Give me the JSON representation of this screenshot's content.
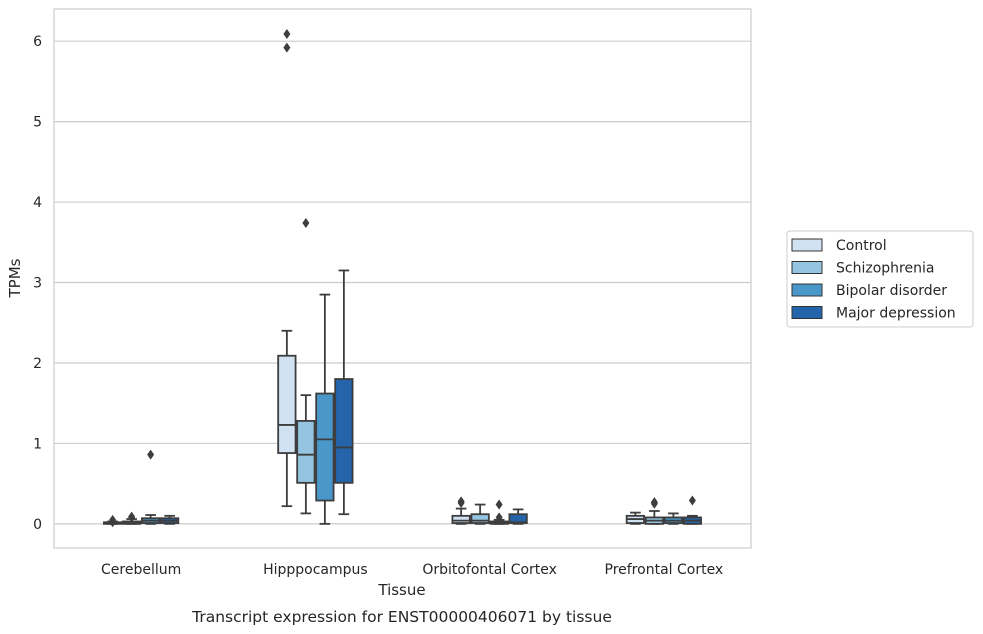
{
  "chart_data": {
    "type": "box",
    "title": "",
    "caption": "Transcript expression for ENST00000406071 by tissue",
    "xlabel": "Tissue",
    "ylabel": "TPMs",
    "ylim": [
      -0.3,
      6.4
    ],
    "yticks": [
      0,
      1,
      2,
      3,
      4,
      5,
      6
    ],
    "grid": "horizontal",
    "legend_position": "right",
    "categories": [
      "Cerebellum",
      "Hipppocampus",
      "Orbitofontal Cortex",
      "Prefrontal Cortex"
    ],
    "series": [
      {
        "name": "Control",
        "color": "#d0e1f2",
        "boxes": [
          {
            "whislo": 0.0,
            "q1": 0.0,
            "med": 0.01,
            "q3": 0.02,
            "whishi": 0.03,
            "fliers": [
              0.05,
              0.02
            ]
          },
          {
            "whislo": 0.22,
            "q1": 0.88,
            "med": 1.23,
            "q3": 2.09,
            "whishi": 2.4,
            "fliers": [
              6.09,
              5.92
            ]
          },
          {
            "whislo": 0.0,
            "q1": 0.01,
            "med": 0.04,
            "q3": 0.1,
            "whishi": 0.19,
            "fliers": [
              0.28,
              0.26
            ]
          },
          {
            "whislo": 0.0,
            "q1": 0.01,
            "med": 0.06,
            "q3": 0.1,
            "whishi": 0.14,
            "fliers": []
          }
        ]
      },
      {
        "name": "Schizophrenia",
        "color": "#94c4df",
        "boxes": [
          {
            "whislo": 0.0,
            "q1": 0.0,
            "med": 0.01,
            "q3": 0.03,
            "whishi": 0.06,
            "fliers": [
              0.09,
              0.08
            ]
          },
          {
            "whislo": 0.13,
            "q1": 0.51,
            "med": 0.86,
            "q3": 1.28,
            "whishi": 1.6,
            "fliers": [
              3.74
            ]
          },
          {
            "whislo": 0.0,
            "q1": 0.01,
            "med": 0.04,
            "q3": 0.12,
            "whishi": 0.24,
            "fliers": []
          },
          {
            "whislo": 0.0,
            "q1": 0.0,
            "med": 0.04,
            "q3": 0.08,
            "whishi": 0.16,
            "fliers": [
              0.27,
              0.25
            ]
          }
        ]
      },
      {
        "name": "Bipolar disorder",
        "color": "#4a98c9",
        "boxes": [
          {
            "whislo": 0.0,
            "q1": 0.01,
            "med": 0.04,
            "q3": 0.07,
            "whishi": 0.11,
            "fliers": [
              0.86
            ]
          },
          {
            "whislo": 0.0,
            "q1": 0.29,
            "med": 1.05,
            "q3": 1.62,
            "whishi": 2.85,
            "fliers": []
          },
          {
            "whislo": 0.0,
            "q1": 0.0,
            "med": 0.01,
            "q3": 0.03,
            "whishi": 0.05,
            "fliers": [
              0.24,
              0.08
            ]
          },
          {
            "whislo": 0.0,
            "q1": 0.01,
            "med": 0.04,
            "q3": 0.08,
            "whishi": 0.13,
            "fliers": []
          }
        ]
      },
      {
        "name": "Major depression",
        "color": "#2364aa",
        "boxes": [
          {
            "whislo": 0.0,
            "q1": 0.01,
            "med": 0.04,
            "q3": 0.07,
            "whishi": 0.1,
            "fliers": []
          },
          {
            "whislo": 0.12,
            "q1": 0.51,
            "med": 0.95,
            "q3": 1.8,
            "whishi": 3.15,
            "fliers": []
          },
          {
            "whislo": 0.0,
            "q1": 0.01,
            "med": 0.02,
            "q3": 0.12,
            "whishi": 0.18,
            "fliers": []
          },
          {
            "whislo": 0.0,
            "q1": 0.0,
            "med": 0.04,
            "q3": 0.08,
            "whishi": 0.1,
            "fliers": [
              0.29
            ]
          }
        ]
      }
    ]
  }
}
